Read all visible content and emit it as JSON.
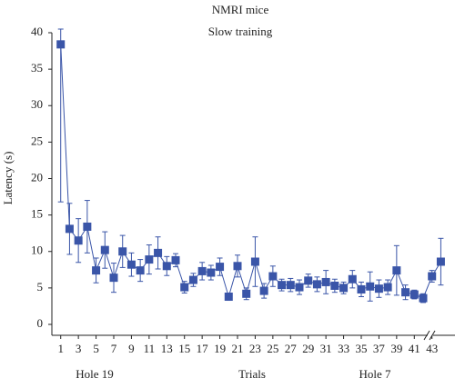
{
  "chart_data": {
    "type": "line",
    "title": "NMRI mice",
    "subtitle": "Slow training",
    "y_label": "Latency (s)",
    "annotations": [
      "Hole 19",
      "Trials",
      "Hole 7"
    ],
    "x": [
      1,
      2,
      3,
      4,
      5,
      6,
      7,
      8,
      9,
      10,
      11,
      12,
      13,
      14,
      15,
      16,
      17,
      18,
      19,
      20,
      21,
      22,
      23,
      24,
      25,
      26,
      27,
      28,
      29,
      30,
      31,
      32,
      33,
      34,
      35,
      36,
      37,
      38,
      39,
      40,
      41,
      42,
      43,
      44
    ],
    "series": [
      {
        "color": "#3a55a8",
        "values": [
          38.4,
          13.1,
          11.5,
          13.4,
          7.4,
          10.2,
          6.4,
          10.0,
          8.2,
          7.4,
          8.9,
          9.8,
          8.0,
          8.8,
          5.1,
          6.1,
          7.3,
          7.1,
          7.9,
          3.8,
          8.0,
          4.2,
          8.6,
          4.6,
          6.6,
          5.4,
          5.4,
          5.1,
          6.0,
          5.5,
          5.8,
          5.3,
          5.0,
          6.2,
          4.8,
          5.2,
          4.9,
          5.1,
          7.4,
          4.4,
          4.1,
          3.6,
          6.6,
          8.6
        ],
        "errors": [
          21.6,
          3.5,
          3,
          3.6,
          1.7,
          2.5,
          2,
          2.2,
          1.6,
          1.5,
          2,
          2.2,
          1.3,
          0.9,
          0.8,
          0.9,
          1.2,
          1,
          1.2,
          0.5,
          1.5,
          0.8,
          3.4,
          1,
          1.4,
          0.8,
          0.9,
          1,
          0.9,
          1,
          1.6,
          0.9,
          0.8,
          1.2,
          1,
          2,
          1.2,
          1,
          3.4,
          1,
          0.6,
          0.6,
          0.8,
          3.2
        ]
      }
    ],
    "xlim": [
      0,
      45.5
    ],
    "ylim": [
      0,
      40
    ],
    "xticks": [
      1,
      3,
      5,
      7,
      9,
      11,
      13,
      15,
      17,
      19,
      21,
      23,
      25,
      27,
      29,
      31,
      33,
      35,
      37,
      39,
      41,
      43
    ],
    "yticks": [
      0,
      5,
      10,
      15,
      20,
      25,
      30,
      35,
      40
    ]
  }
}
